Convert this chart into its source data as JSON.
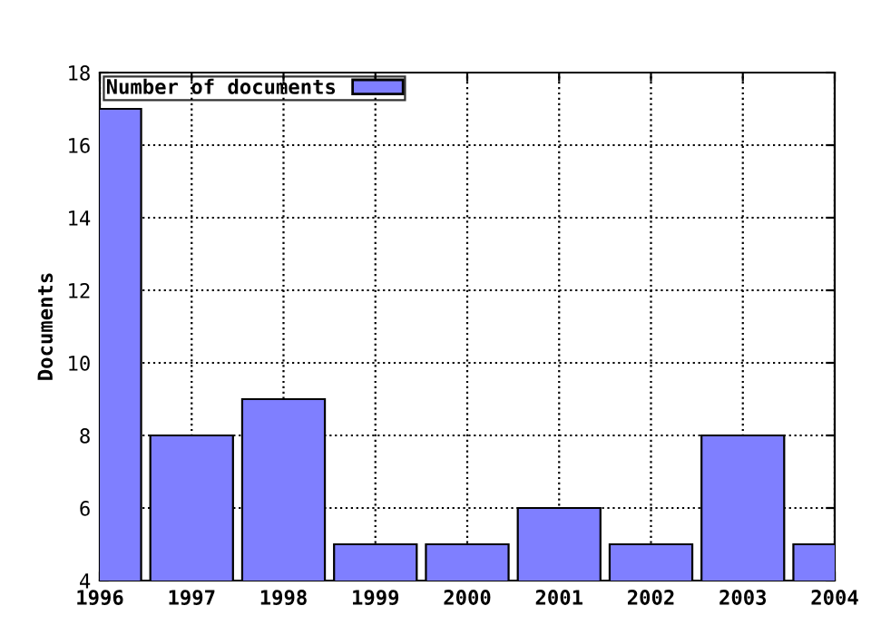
{
  "chart_data": {
    "type": "bar",
    "ylabel": "Documents",
    "x": [
      1996,
      1997,
      1998,
      1999,
      2000,
      2001,
      2002,
      2003,
      2004
    ],
    "series": [
      {
        "name": "Number of documents",
        "color": "#7f7fff",
        "values": [
          17,
          8,
          9,
          5,
          5,
          6,
          5,
          8,
          5
        ]
      }
    ],
    "xlim": [
      1996,
      2004
    ],
    "xticks": [
      1996,
      1997,
      1998,
      1999,
      2000,
      2001,
      2002,
      2003,
      2004
    ],
    "ylim": [
      4,
      18
    ],
    "yticks": [
      4,
      6,
      8,
      10,
      12,
      14,
      16,
      18
    ],
    "grid": true,
    "legend": "top left"
  }
}
